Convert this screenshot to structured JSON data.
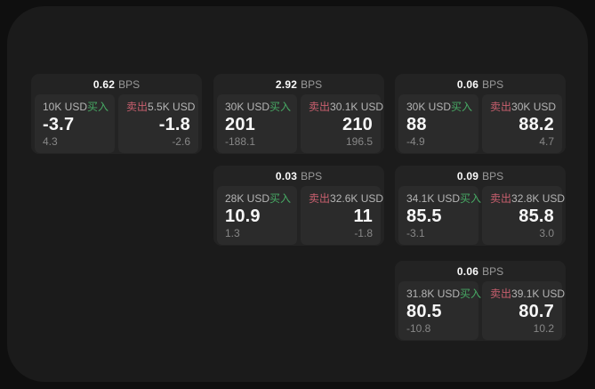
{
  "page": {
    "backdrop_color": "#0f0f0f",
    "surface_color": "#1b1b1b"
  },
  "labels": {
    "buy": "买入",
    "sell": "卖出",
    "bps_unit": "BPS"
  },
  "colors": {
    "buy": "#47a964",
    "sell": "#c85f6e",
    "card_bg": "#232323",
    "panel_bg": "#2b2b2b",
    "price_text": "#f7f7f7",
    "muted_text": "#878787"
  },
  "cards": [
    {
      "bps": "0.62",
      "buy": {
        "notional": "10K USD",
        "price": "-3.7",
        "change": "4.3"
      },
      "sell": {
        "notional": "5.5K USD",
        "price": "-1.8",
        "change": "-2.6"
      }
    },
    {
      "bps": "2.92",
      "buy": {
        "notional": "30K USD",
        "price": "201",
        "change": "-188.1"
      },
      "sell": {
        "notional": "30.1K USD",
        "price": "210",
        "change": "196.5"
      }
    },
    {
      "bps": "0.06",
      "buy": {
        "notional": "30K USD",
        "price": "88",
        "change": "-4.9"
      },
      "sell": {
        "notional": "30K USD",
        "price": "88.2",
        "change": "4.7"
      }
    },
    {
      "bps": "0.03",
      "buy": {
        "notional": "28K USD",
        "price": "10.9",
        "change": "1.3"
      },
      "sell": {
        "notional": "32.6K USD",
        "price": "11",
        "change": "-1.8"
      }
    },
    {
      "bps": "0.09",
      "buy": {
        "notional": "34.1K USD",
        "price": "85.5",
        "change": "-3.1"
      },
      "sell": {
        "notional": "32.8K USD",
        "price": "85.8",
        "change": "3.0"
      }
    },
    {
      "bps": "0.06",
      "buy": {
        "notional": "31.8K USD",
        "price": "80.5",
        "change": "-10.8"
      },
      "sell": {
        "notional": "39.1K USD",
        "price": "80.7",
        "change": "10.2"
      }
    }
  ]
}
